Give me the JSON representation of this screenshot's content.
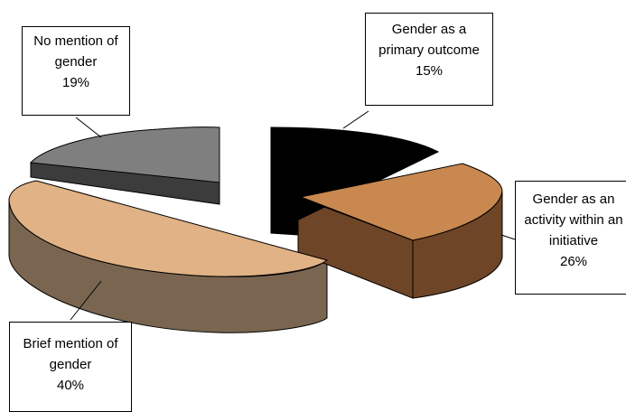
{
  "chart_data": {
    "type": "pie",
    "style": "3d-exploded",
    "title": "",
    "slices": [
      {
        "label_lines": [
          "Gender as a",
          "primary outcome"
        ],
        "value": 15,
        "value_text": "15%",
        "color": "#000000",
        "side_color": "#000000"
      },
      {
        "label_lines": [
          "Gender as an",
          "activity within an",
          "initiative"
        ],
        "value": 26,
        "value_text": "26%",
        "color": "#C8884F",
        "side_color": "#6E4527"
      },
      {
        "label_lines": [
          "Brief mention of",
          "gender"
        ],
        "value": 40,
        "value_text": "40%",
        "color": "#E0B285",
        "side_color": "#7A6650"
      },
      {
        "label_lines": [
          "No mention of",
          "gender"
        ],
        "value": 19,
        "value_text": "19%",
        "color": "#7F7F7F",
        "side_color": "#3C3C3C"
      }
    ],
    "legend": "none",
    "grid": false
  }
}
